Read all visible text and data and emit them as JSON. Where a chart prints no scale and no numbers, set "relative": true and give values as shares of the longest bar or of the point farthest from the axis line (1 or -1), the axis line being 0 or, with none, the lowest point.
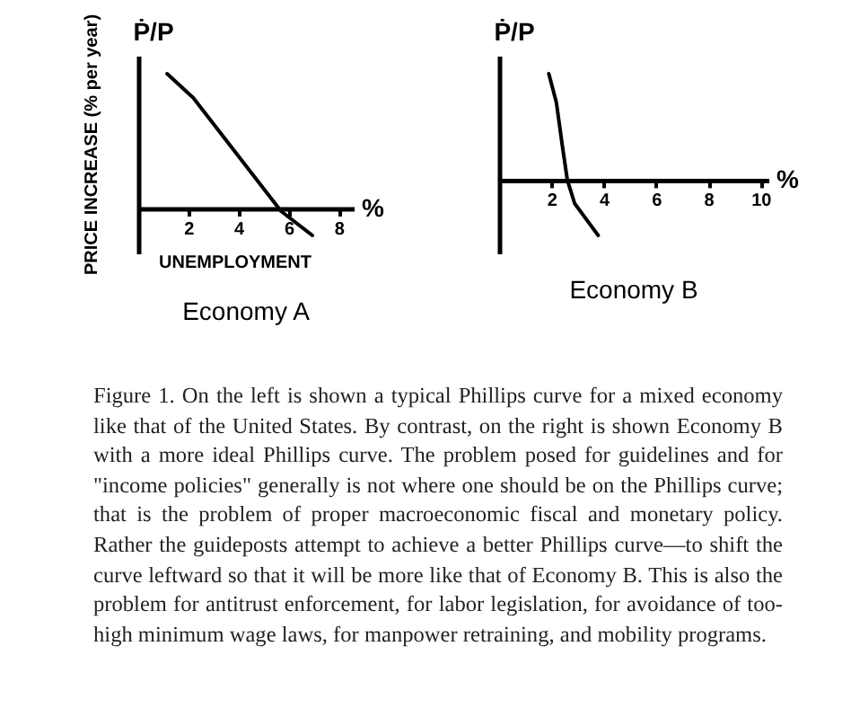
{
  "chart_data": [
    {
      "type": "line",
      "title": "Economy A",
      "xlabel": "%",
      "ylabel": "Ṗ/P",
      "relative": true,
      "annotations": [
        "UNEMPLOYMENT",
        "PRICE INCREASE (% per year)"
      ],
      "x": [
        1.15,
        2.2,
        3.2,
        4.2,
        5.2,
        5.7,
        6.95
      ],
      "xlim": [
        0,
        8.6
      ],
      "xticks": [
        2,
        4,
        6,
        8
      ],
      "series": [
        {
          "color": "#000000",
          "values": [
            1,
            0.82,
            0.58,
            0.34,
            0.1,
            -0.02,
            -0.2
          ]
        }
      ]
    },
    {
      "type": "line",
      "title": "Economy B",
      "xlabel": "%",
      "ylabel": "Ṗ/P",
      "relative": true,
      "x": [
        1.9,
        2.19,
        2.42,
        2.61,
        2.89,
        3.79
      ],
      "xlim": [
        0,
        10.3
      ],
      "xticks": [
        2,
        4,
        6,
        8,
        10
      ],
      "series": [
        {
          "color": "#000000",
          "values": [
            1,
            0.73,
            0.32,
            0,
            -0.22,
            -0.52
          ]
        }
      ]
    },
    {
      "type": "other",
      "annotations": [
        "Figure 1. On the left is shown a typical Phillips curve for a mixed economy like that of the United States. By contrast, on the right is shown Economy B with a more ideal Phillips curve. The problem posed for guidelines and for \"income policies\" generally is not where one should be on the Phillips curve; that is the problem of proper macroeconomic fiscal and monetary policy. Rather the guideposts attempt to achieve a better Phillips curve—to shift the curve leftward so that it will be more like that of Economy B. This is also the problem for antitrust enforcement, for labor legislation, for avoidance of too-high minimum wage laws, for manpower retraining, and mobility programs."
      ]
    }
  ]
}
